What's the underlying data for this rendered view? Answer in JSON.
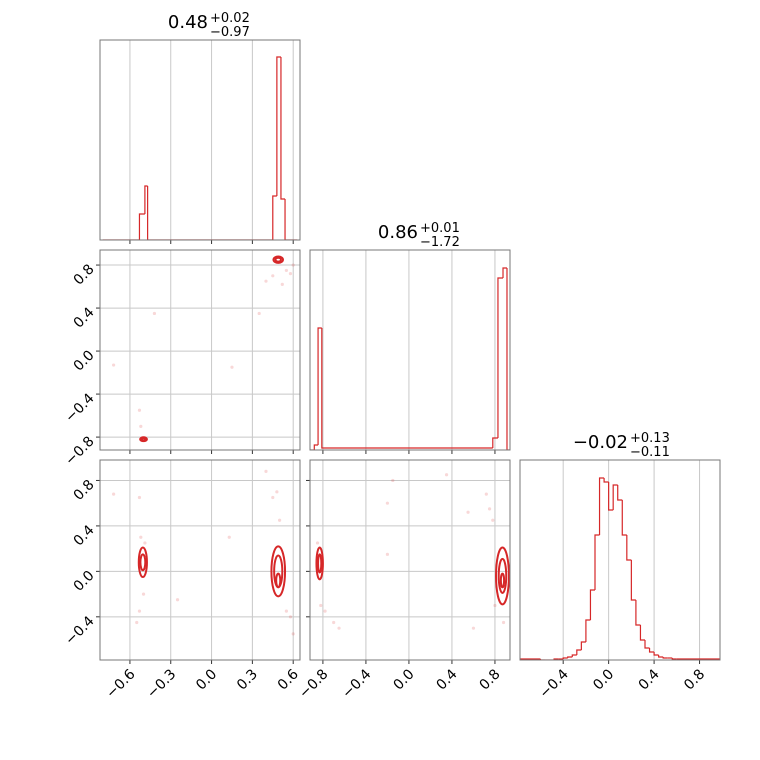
{
  "chart_data": [
    {
      "type": "histogram",
      "title": "0.48",
      "title_sup": "+0.02",
      "title_sub": "−0.97",
      "color": "#d62728",
      "bins": [
        -0.8,
        -0.53,
        -0.49,
        -0.47,
        0.45,
        0.48,
        0.51,
        0.54,
        0.63
      ],
      "values": [
        0,
        26,
        54,
        0,
        44,
        183,
        41,
        0
      ],
      "xlim": [
        -0.82,
        0.65
      ],
      "xticks": [
        -0.6,
        -0.3,
        0,
        0.3,
        0.6
      ],
      "ylim": [
        0,
        200
      ],
      "grid": true
    },
    {
      "type": "scatter",
      "color": "#d62728",
      "x": [
        0.4,
        0.35,
        0.55,
        0.6,
        -0.53,
        -0.52,
        -0.42,
        0.15,
        -0.72,
        0.45,
        0.52,
        0.58
      ],
      "y": [
        0.65,
        0.35,
        0.75,
        0.8,
        -0.55,
        -0.7,
        0.35,
        -0.15,
        -0.13,
        0.7,
        0.62,
        0.72
      ],
      "contours": [
        {
          "x": 0.49,
          "y": 0.85,
          "rx": 0.035,
          "ry": 0.03
        },
        {
          "x": 0.49,
          "y": 0.85,
          "rx": 0.02,
          "ry": 0.018
        },
        {
          "x": -0.5,
          "y": -0.82,
          "rx": 0.025,
          "ry": 0.018
        },
        {
          "x": -0.5,
          "y": -0.82,
          "rx": 0.012,
          "ry": 0.01
        }
      ],
      "xlim": [
        -0.82,
        0.65
      ],
      "xticks": [
        -0.6,
        -0.3,
        0,
        0.3,
        0.6
      ],
      "ylim": [
        -0.92,
        0.94
      ],
      "yticks": [
        {
          "value": -0.8,
          "label": "−0.8"
        },
        {
          "value": -0.4,
          "label": "−0.4"
        },
        {
          "value": 0,
          "label": "0.0"
        },
        0.4,
        0.8
      ],
      "grid": true
    },
    {
      "type": "histogram",
      "title": "0.86",
      "title_sup": "+0.01",
      "title_sub": "−1.72",
      "color": "#d62728",
      "bins": [
        -0.92,
        -0.88,
        -0.845,
        -0.81,
        0.78,
        0.828,
        0.875,
        0.912,
        0.94
      ],
      "values": [
        0,
        5,
        122,
        2,
        12,
        172,
        182,
        0
      ],
      "xlim": [
        -0.92,
        0.94
      ],
      "xticks": [
        -0.8,
        -0.4,
        0,
        0.4,
        0.8
      ],
      "ylim": [
        0,
        200
      ],
      "grid": true
    },
    {
      "type": "scatter",
      "color": "#d62728",
      "x": [
        -0.55,
        -0.53,
        -0.5,
        -0.52,
        -0.49,
        -0.72,
        -0.53,
        0.45,
        0.48,
        0.5,
        0.55,
        0.58,
        0.13,
        -0.25,
        0.4,
        0.6
      ],
      "y": [
        -0.45,
        -0.35,
        -0.2,
        0.3,
        0.25,
        0.68,
        0.65,
        0.65,
        0.7,
        0.45,
        -0.35,
        -0.4,
        0.3,
        -0.25,
        0.88,
        -0.55
      ],
      "contours": [
        {
          "x": -0.505,
          "y": 0.08,
          "rx": 0.03,
          "ry": 0.13
        },
        {
          "x": -0.505,
          "y": 0.08,
          "rx": 0.018,
          "ry": 0.07
        },
        {
          "x": 0.49,
          "y": 0,
          "rx": 0.05,
          "ry": 0.22
        },
        {
          "x": 0.49,
          "y": 0,
          "rx": 0.03,
          "ry": 0.14
        },
        {
          "x": 0.49,
          "y": -0.08,
          "rx": 0.015,
          "ry": 0.06
        }
      ],
      "xlim": [
        -0.82,
        0.65
      ],
      "xticks": [
        {
          "value": -0.6,
          "label": "−0.6"
        },
        {
          "value": -0.3,
          "label": "−0.3"
        },
        {
          "value": 0,
          "label": "0.0"
        },
        0.3,
        0.6
      ],
      "ylim": [
        -0.78,
        0.98
      ],
      "yticks": [
        {
          "value": -0.4,
          "label": "−0.4"
        },
        {
          "value": 0,
          "label": "0.0"
        },
        0.4,
        0.8
      ],
      "grid": true
    },
    {
      "type": "scatter",
      "color": "#d62728",
      "x": [
        -0.82,
        -0.78,
        -0.7,
        -0.65,
        -0.85,
        0.75,
        0.72,
        0.78,
        0.8,
        0.6,
        0.55,
        -0.2,
        -0.15,
        0.35,
        -0.2,
        0.88
      ],
      "y": [
        -0.3,
        -0.35,
        -0.45,
        -0.5,
        0.25,
        0.55,
        0.68,
        0.45,
        -0.3,
        -0.5,
        0.52,
        0.6,
        0.8,
        0.85,
        0.15,
        -0.45
      ],
      "contours": [
        {
          "x": -0.83,
          "y": 0.07,
          "rx": 0.03,
          "ry": 0.14
        },
        {
          "x": -0.83,
          "y": 0.07,
          "rx": 0.015,
          "ry": 0.08
        },
        {
          "x": 0.87,
          "y": -0.04,
          "rx": 0.06,
          "ry": 0.25
        },
        {
          "x": 0.87,
          "y": -0.04,
          "rx": 0.035,
          "ry": 0.15
        },
        {
          "x": 0.87,
          "y": -0.08,
          "rx": 0.015,
          "ry": 0.06
        }
      ],
      "xlim": [
        -0.92,
        0.94
      ],
      "xticks": [
        {
          "value": -0.8,
          "label": "−0.8"
        },
        {
          "value": -0.4,
          "label": "−0.4"
        },
        {
          "value": 0,
          "label": "0.0"
        },
        0.4,
        0.8
      ],
      "ylim": [
        -0.78,
        0.98
      ],
      "yticks": [
        -0.4,
        0,
        0.4,
        0.8
      ],
      "grid": true
    },
    {
      "type": "histogram",
      "title": "−0.02",
      "title_sup": "+0.13",
      "title_sub": "−0.11",
      "color": "#d62728",
      "bins": [
        -0.79,
        -0.6,
        -0.56,
        -0.52,
        -0.48,
        -0.44,
        -0.4,
        -0.36,
        -0.32,
        -0.28,
        -0.24,
        -0.2,
        -0.16,
        -0.12,
        -0.08,
        -0.04,
        0,
        0.04,
        0.08,
        0.12,
        0.16,
        0.2,
        0.24,
        0.28,
        0.32,
        0.36,
        0.4,
        0.44,
        0.48,
        0.52,
        0.56,
        0.6,
        0.98
      ],
      "values": [
        1,
        0,
        0,
        0,
        1,
        1,
        2,
        3,
        5,
        10,
        18,
        40,
        70,
        125,
        182,
        178,
        150,
        175,
        160,
        125,
        100,
        60,
        35,
        20,
        12,
        8,
        5,
        3,
        2,
        2,
        1,
        1
      ],
      "xlim": [
        -0.78,
        0.98
      ],
      "xticks": [
        {
          "value": -0.4,
          "label": "−0.4"
        },
        {
          "value": 0,
          "label": "0.0"
        },
        0.4,
        0.8
      ],
      "ylim": [
        0,
        200
      ],
      "grid": true
    }
  ]
}
